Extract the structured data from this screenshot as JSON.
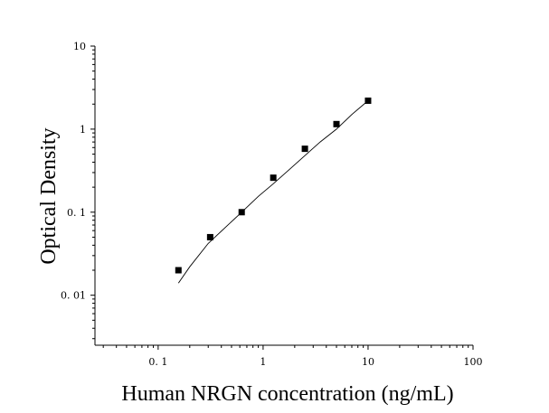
{
  "chart_data": {
    "type": "scatter",
    "title": "",
    "xlabel": "Human NRGN concentration (ng/mL)",
    "ylabel": "Optical Density",
    "xscale": "log",
    "yscale": "log",
    "xlim": [
      0.025,
      100
    ],
    "ylim": [
      0.0025,
      10
    ],
    "x_ticks": [
      {
        "value": 0.1,
        "label": "0. 1"
      },
      {
        "value": 1,
        "label": "1"
      },
      {
        "value": 10,
        "label": "10"
      },
      {
        "value": 100,
        "label": "100"
      }
    ],
    "y_ticks": [
      {
        "value": 0.01,
        "label": "0. 01"
      },
      {
        "value": 0.1,
        "label": "0. 1"
      },
      {
        "value": 1,
        "label": "1"
      },
      {
        "value": 10,
        "label": "10"
      }
    ],
    "grid": false,
    "legend": "none",
    "series": [
      {
        "type": "scatter",
        "marker": "square",
        "color": "#000000",
        "x": [
          0.156,
          0.313,
          0.625,
          1.25,
          2.5,
          5,
          10
        ],
        "y": [
          0.02,
          0.05,
          0.1,
          0.26,
          0.58,
          1.15,
          2.2
        ]
      },
      {
        "type": "line",
        "color": "#000000",
        "x": [
          0.156,
          0.2,
          0.3,
          0.45,
          0.625,
          0.9,
          1.25,
          1.8,
          2.5,
          3.5,
          5,
          7,
          10
        ],
        "y": [
          0.014,
          0.022,
          0.042,
          0.068,
          0.1,
          0.155,
          0.22,
          0.33,
          0.48,
          0.7,
          1.0,
          1.5,
          2.2
        ]
      }
    ]
  }
}
